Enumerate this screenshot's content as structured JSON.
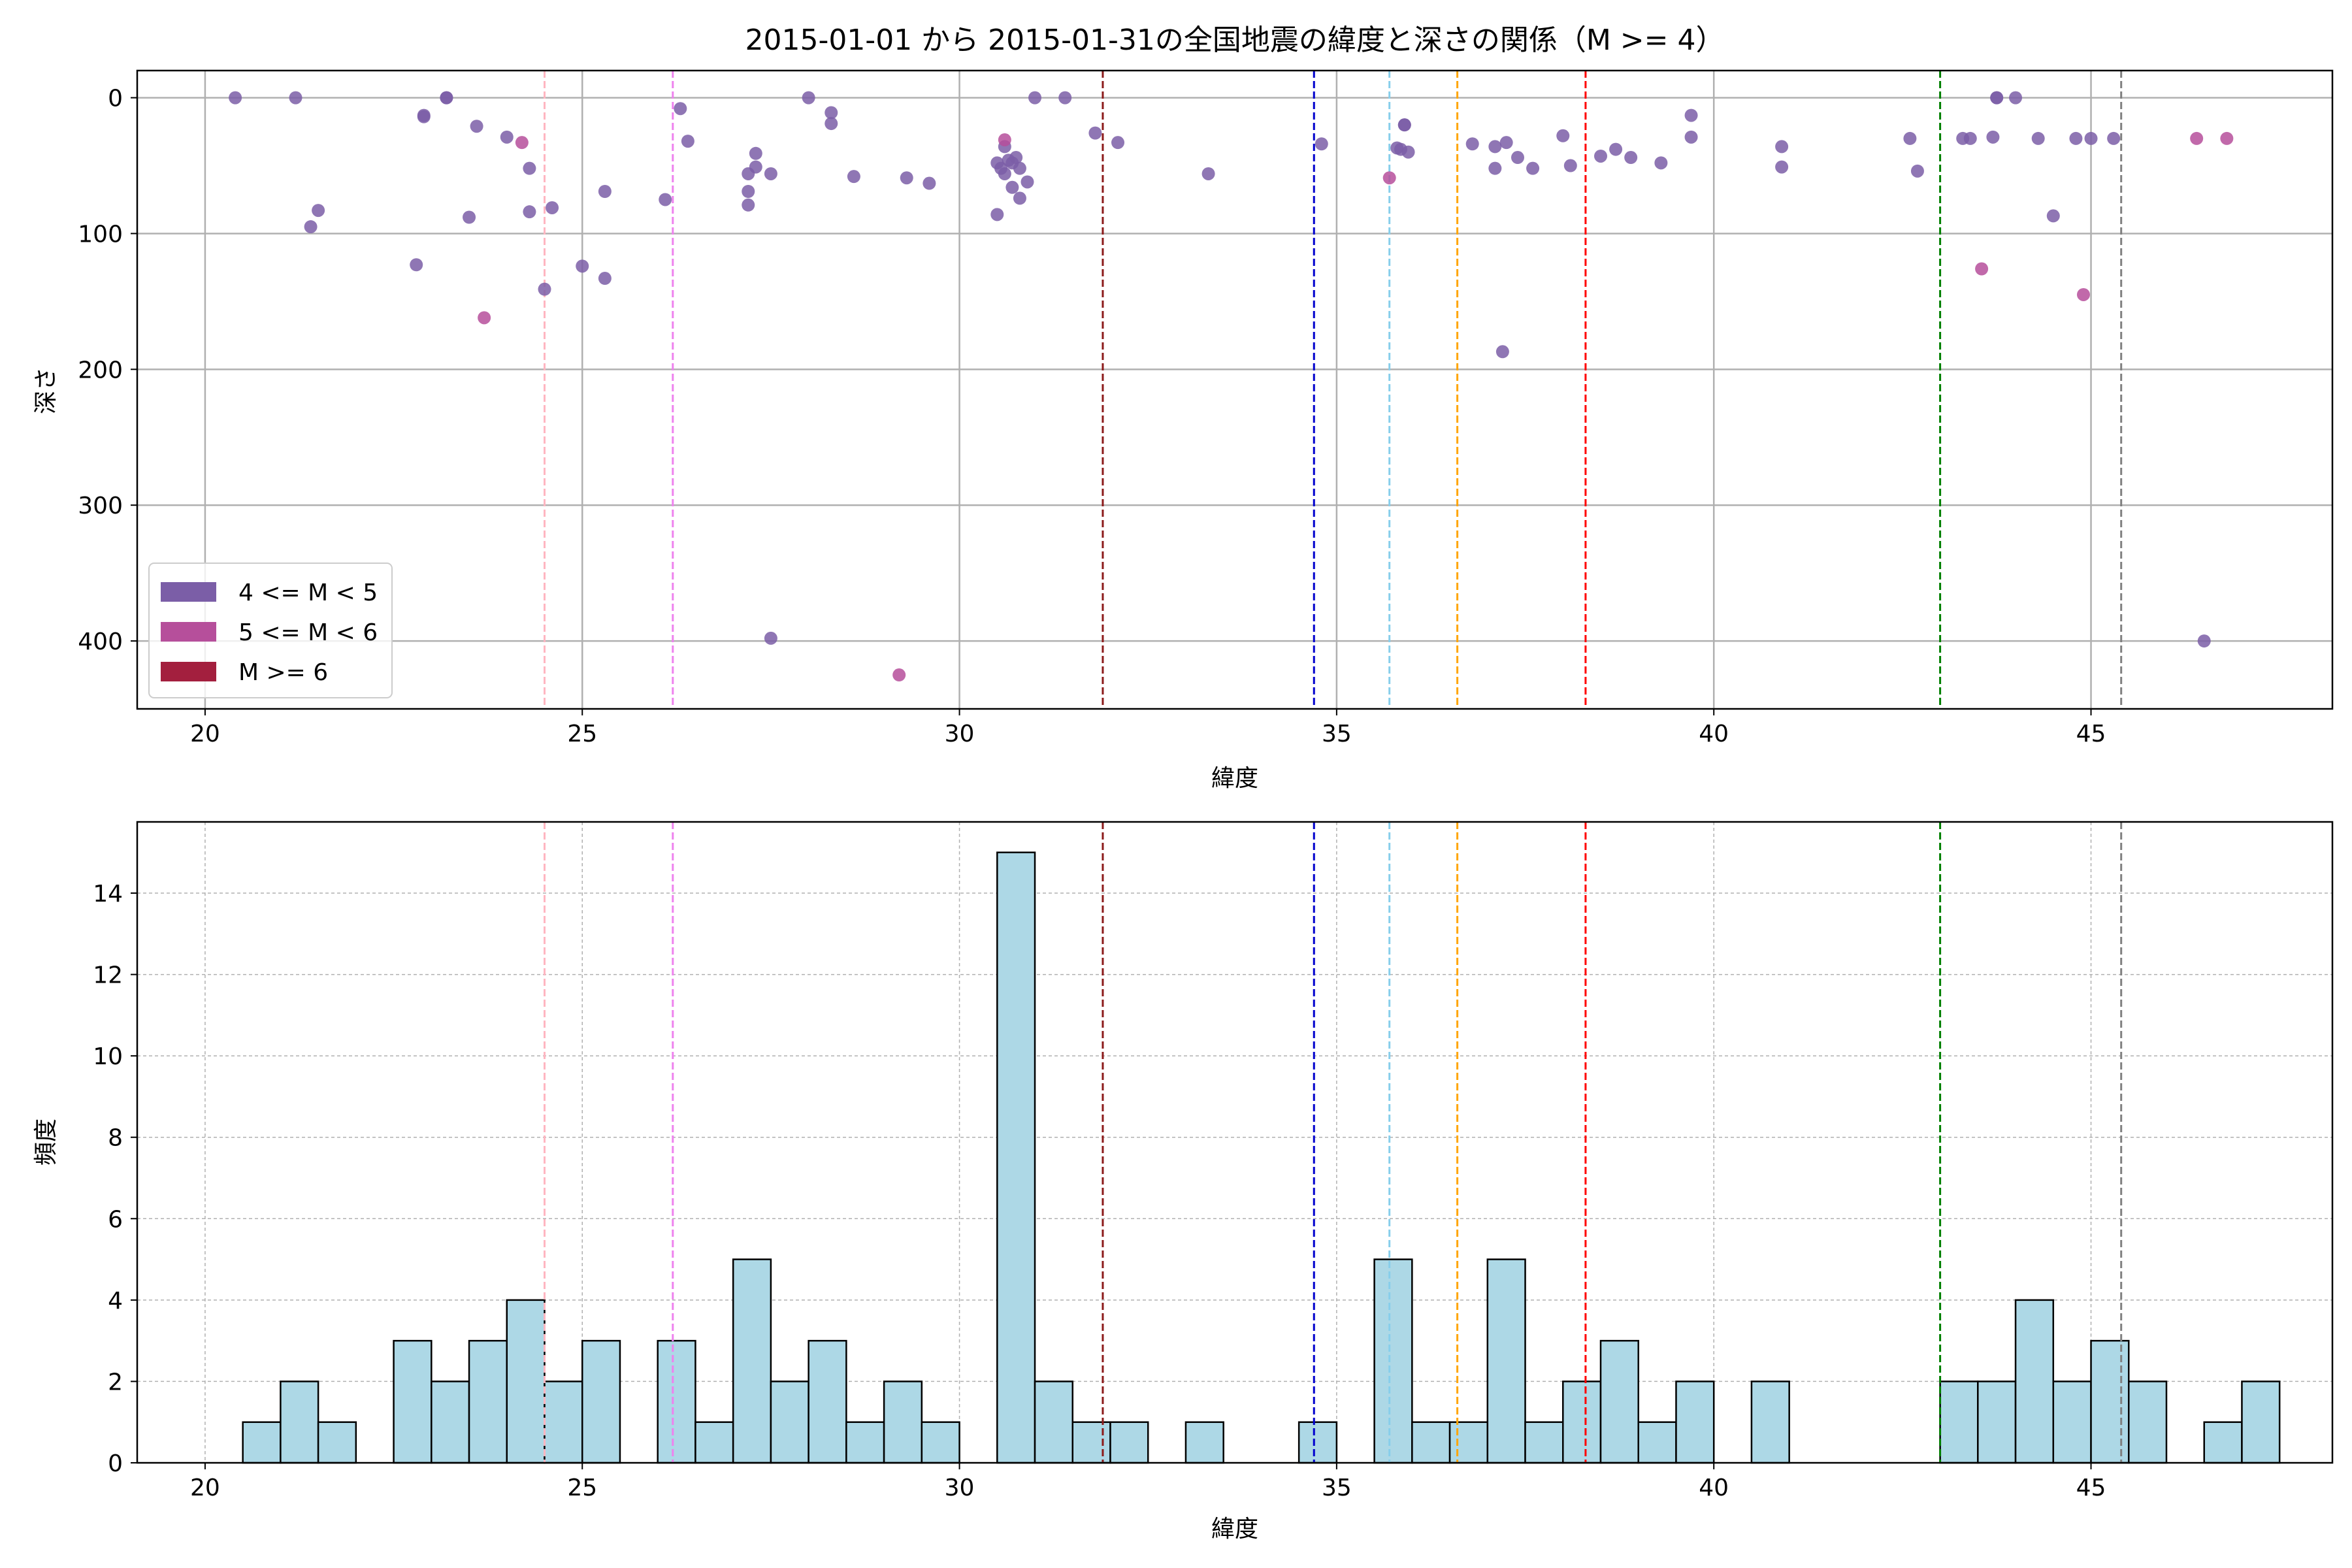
{
  "title": "2015-01-01 から 2015-01-31の全国地震の緯度と深さの関係（M >= 4）",
  "colors": {
    "m4": "#7b5ea7",
    "m5": "#b64f9b",
    "m6": "#a31f3e",
    "hist_fill": "#add8e6",
    "hist_edge": "#000000",
    "grid": "#b0b0b0"
  },
  "vlines": [
    {
      "x": 24.5,
      "color": "#ffb6c1"
    },
    {
      "x": 26.2,
      "color": "#ee82ee"
    },
    {
      "x": 31.9,
      "color": "#8b1a1a"
    },
    {
      "x": 34.7,
      "color": "#0000cd"
    },
    {
      "x": 35.7,
      "color": "#87ceeb"
    },
    {
      "x": 36.6,
      "color": "#ffa500"
    },
    {
      "x": 38.3,
      "color": "#ff0000"
    },
    {
      "x": 43.0,
      "color": "#008000"
    },
    {
      "x": 45.4,
      "color": "#808080"
    }
  ],
  "chart_data": [
    {
      "type": "scatter",
      "xlabel": "緯度",
      "ylabel": "深さ",
      "xlim": [
        19.1,
        48.2
      ],
      "ylim": [
        450,
        -20
      ],
      "y_inverted": true,
      "x_ticks": [
        20,
        25,
        30,
        35,
        40,
        45
      ],
      "y_ticks": [
        0,
        100,
        200,
        300,
        400
      ],
      "grid": true,
      "legend_position": "lower-left",
      "legend": [
        "4 <= M < 5",
        "5 <= M < 6",
        "M >= 6"
      ],
      "series": [
        {
          "name": "4 <= M < 5",
          "points": [
            [
              20.4,
              0
            ],
            [
              21.2,
              0
            ],
            [
              21.4,
              95
            ],
            [
              21.5,
              83
            ],
            [
              22.8,
              123
            ],
            [
              22.9,
              13
            ],
            [
              22.9,
              14
            ],
            [
              23.2,
              0
            ],
            [
              23.2,
              0
            ],
            [
              23.5,
              88
            ],
            [
              23.6,
              21
            ],
            [
              24.0,
              29
            ],
            [
              24.3,
              52
            ],
            [
              24.3,
              84
            ],
            [
              24.5,
              141
            ],
            [
              24.6,
              81
            ],
            [
              25.0,
              124
            ],
            [
              25.3,
              133
            ],
            [
              25.3,
              69
            ],
            [
              26.1,
              75
            ],
            [
              26.3,
              8
            ],
            [
              26.4,
              32
            ],
            [
              27.2,
              56
            ],
            [
              27.2,
              69
            ],
            [
              27.2,
              79
            ],
            [
              27.3,
              41
            ],
            [
              27.3,
              51
            ],
            [
              27.5,
              56
            ],
            [
              27.5,
              398
            ],
            [
              28.0,
              0
            ],
            [
              28.3,
              11
            ],
            [
              28.3,
              19
            ],
            [
              28.6,
              58
            ],
            [
              29.3,
              59
            ],
            [
              29.6,
              63
            ],
            [
              30.5,
              86
            ],
            [
              30.5,
              48
            ],
            [
              30.55,
              52
            ],
            [
              30.6,
              56
            ],
            [
              30.6,
              36
            ],
            [
              30.65,
              46
            ],
            [
              30.7,
              66
            ],
            [
              30.7,
              48
            ],
            [
              30.75,
              44
            ],
            [
              30.8,
              52
            ],
            [
              30.8,
              74
            ],
            [
              30.9,
              62
            ],
            [
              31.0,
              0
            ],
            [
              31.4,
              0
            ],
            [
              31.8,
              26
            ],
            [
              32.1,
              33
            ],
            [
              33.3,
              56
            ],
            [
              34.8,
              34
            ],
            [
              35.8,
              37
            ],
            [
              35.85,
              38
            ],
            [
              35.9,
              20
            ],
            [
              35.9,
              20
            ],
            [
              35.95,
              40
            ],
            [
              36.8,
              34
            ],
            [
              37.1,
              52
            ],
            [
              37.1,
              36
            ],
            [
              37.2,
              187
            ],
            [
              37.25,
              33
            ],
            [
              37.4,
              44
            ],
            [
              37.6,
              52
            ],
            [
              38.0,
              28
            ],
            [
              38.1,
              50
            ],
            [
              38.5,
              43
            ],
            [
              38.7,
              38
            ],
            [
              38.9,
              44
            ],
            [
              39.3,
              48
            ],
            [
              39.7,
              13
            ],
            [
              39.7,
              29
            ],
            [
              40.9,
              36
            ],
            [
              40.9,
              51
            ],
            [
              42.6,
              30
            ],
            [
              42.7,
              54
            ],
            [
              43.3,
              30
            ],
            [
              43.4,
              30
            ],
            [
              43.7,
              29
            ],
            [
              43.75,
              0
            ],
            [
              43.75,
              0
            ],
            [
              44.0,
              0
            ],
            [
              44.3,
              30
            ],
            [
              44.5,
              87
            ],
            [
              44.8,
              30
            ],
            [
              45.0,
              30
            ],
            [
              45.3,
              30
            ],
            [
              46.5,
              400
            ]
          ]
        },
        {
          "name": "5 <= M < 6",
          "points": [
            [
              23.7,
              162
            ],
            [
              24.2,
              33
            ],
            [
              29.2,
              425
            ],
            [
              30.6,
              31
            ],
            [
              35.7,
              59
            ],
            [
              43.55,
              126
            ],
            [
              44.9,
              145
            ],
            [
              46.4,
              30
            ],
            [
              46.8,
              30
            ]
          ]
        },
        {
          "name": "M >= 6",
          "points": []
        }
      ]
    },
    {
      "type": "bar",
      "subtype": "histogram",
      "xlabel": "緯度",
      "ylabel": "頻度",
      "xlim": [
        19.1,
        48.2
      ],
      "ylim": [
        0,
        15.75
      ],
      "x_ticks": [
        20,
        25,
        30,
        35,
        40,
        45
      ],
      "y_ticks": [
        0,
        2,
        4,
        6,
        8,
        10,
        12,
        14
      ],
      "grid": true,
      "bin_start": 20.0,
      "bin_width": 0.5,
      "values": [
        0,
        1,
        2,
        1,
        0,
        3,
        2,
        3,
        4,
        2,
        3,
        0,
        3,
        1,
        5,
        2,
        3,
        1,
        2,
        1,
        0,
        15,
        2,
        1,
        1,
        0,
        1,
        0,
        0,
        1,
        0,
        5,
        1,
        1,
        5,
        1,
        2,
        3,
        1,
        2,
        0,
        2,
        0,
        0,
        0,
        0,
        2,
        2,
        4,
        2,
        3,
        2,
        0,
        1,
        2
      ]
    }
  ]
}
